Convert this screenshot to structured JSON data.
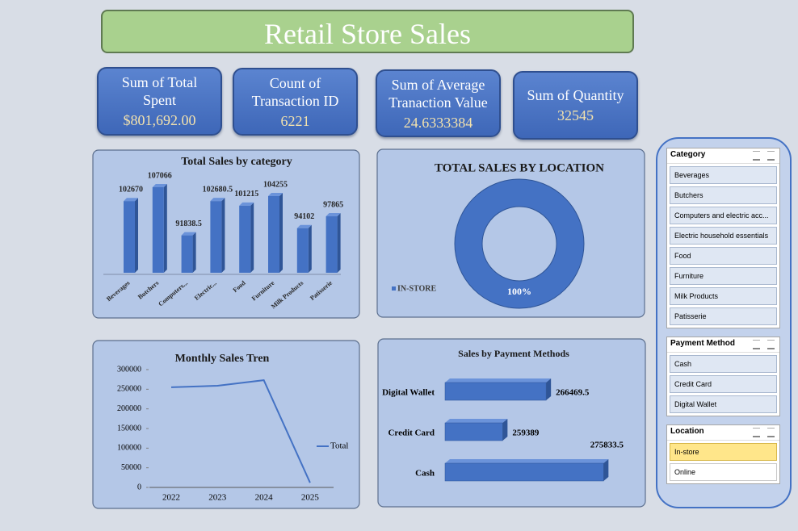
{
  "title": "Retail Store Sales",
  "kpis": [
    {
      "label": "Sum of Total Spent",
      "value": "$801,692.00"
    },
    {
      "label": "Count of Transaction ID",
      "value": "6221"
    },
    {
      "label": "Sum of Average Tranaction Value",
      "value": "24.6333384"
    },
    {
      "label": "Sum of Quantity",
      "value": "32545"
    }
  ],
  "chart_data": [
    {
      "type": "bar",
      "title": "Total Sales by category",
      "color": "#4472c4",
      "categories": [
        "Beverages",
        "Butchers",
        "Computers...",
        "Electric...",
        "Food",
        "Furniture",
        "Milk Products",
        "Patisserie"
      ],
      "values": [
        102670,
        107066,
        91838.5,
        102680.5,
        101215,
        104255,
        94102,
        97865
      ],
      "ylim": [
        80000,
        110000
      ]
    },
    {
      "type": "donut",
      "title": "TOTAL SALES BY LOCATION",
      "color": "#4472c4",
      "categories": [
        "IN-STORE"
      ],
      "values": [
        100
      ],
      "value_labels": [
        "100%"
      ],
      "legend": "left"
    },
    {
      "type": "line",
      "title": "Monthly Sales Tren",
      "categories": [
        "2022",
        "2023",
        "2024",
        "2025"
      ],
      "series": [
        {
          "name": "Total",
          "color": "#4472c4",
          "values": [
            255000,
            259000,
            273000,
            12000
          ]
        }
      ],
      "ylim": [
        0,
        300000
      ],
      "yticks": [
        0,
        50000,
        100000,
        150000,
        200000,
        250000,
        300000
      ],
      "grid": false,
      "legend": "right"
    },
    {
      "type": "bar",
      "horizontal": true,
      "title": "Sales by Payment Methods",
      "color": "#4472c4",
      "categories": [
        "Cash",
        "Credit Card",
        "Digital Wallet"
      ],
      "values": [
        275833.5,
        259389,
        266469.5
      ],
      "xlim": [
        250000,
        280000
      ]
    }
  ],
  "slicers": [
    {
      "title": "Category",
      "items": [
        "Beverages",
        "Butchers",
        "Computers and electric acc...",
        "Electric household essentials",
        "Food",
        "Furniture",
        "Milk Products",
        "Patisserie"
      ]
    },
    {
      "title": "Payment Method",
      "items": [
        "Cash",
        "Credit Card",
        "Digital Wallet"
      ]
    },
    {
      "title": "Location",
      "items": [
        "In-store",
        "Online"
      ],
      "selected": [
        0
      ]
    }
  ]
}
